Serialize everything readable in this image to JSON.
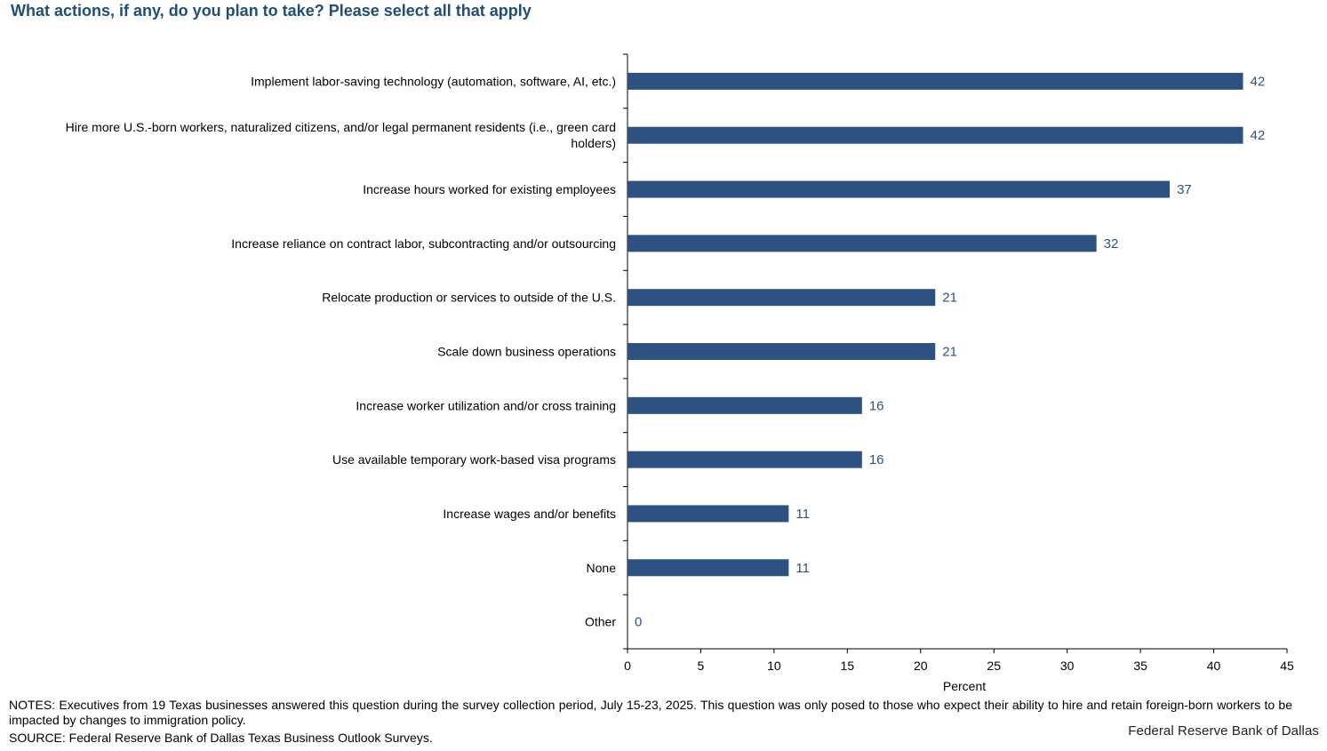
{
  "title": "What actions, if any, do you plan to take? Please select all that apply",
  "notes": "NOTES: Executives from 19 Texas businesses answered this question during the survey collection period, July 15-23, 2025. This question was only posed to those who expect their ability to hire and retain foreign-born workers to be impacted by changes to immigration policy.",
  "source": "SOURCE: Federal Reserve Bank of Dallas Texas Business Outlook Surveys.",
  "brand": "Federal Reserve Bank of Dallas",
  "colors": {
    "bar": "#2d5281",
    "label": "#2d5281",
    "axis": "#000000"
  },
  "chart_data": {
    "type": "bar",
    "orientation": "horizontal",
    "categories": [
      "Implement labor-saving technology (automation, software, AI, etc.)",
      "Hire more U.S.-born workers, naturalized citizens, and/or legal permanent residents (i.e., green card holders)",
      "Increase hours worked for existing employees",
      "Increase reliance on contract labor, subcontracting and/or outsourcing",
      "Relocate production or services to outside of the U.S.",
      "Scale down business operations",
      "Increase worker utilization and/or cross training",
      "Use available temporary work-based visa programs",
      "Increase wages and/or benefits",
      "None",
      "Other"
    ],
    "category_lines": [
      [
        "Implement labor-saving technology (automation, software, AI, etc.)"
      ],
      [
        "Hire more U.S.-born workers, naturalized citizens, and/or legal permanent residents (i.e., green card",
        "holders)"
      ],
      [
        "Increase hours worked for existing employees"
      ],
      [
        "Increase reliance on contract labor, subcontracting and/or outsourcing"
      ],
      [
        "Relocate production or services to outside of the U.S."
      ],
      [
        "Scale down business operations"
      ],
      [
        "Increase worker utilization and/or cross training"
      ],
      [
        "Use available temporary work-based visa programs"
      ],
      [
        "Increase wages and/or benefits"
      ],
      [
        "None"
      ],
      [
        "Other"
      ]
    ],
    "values": [
      42,
      42,
      37,
      32,
      21,
      21,
      16,
      16,
      11,
      11,
      0
    ],
    "data_labels": [
      "42",
      "42",
      "37",
      "32",
      "21",
      "21",
      "16",
      "16",
      "11",
      "11",
      "0"
    ],
    "xlabel": "Percent",
    "ylabel": "",
    "xlim": [
      0,
      45
    ],
    "xticks": [
      0,
      5,
      10,
      15,
      20,
      25,
      30,
      35,
      40,
      45
    ],
    "grid": false,
    "legend": "none"
  }
}
